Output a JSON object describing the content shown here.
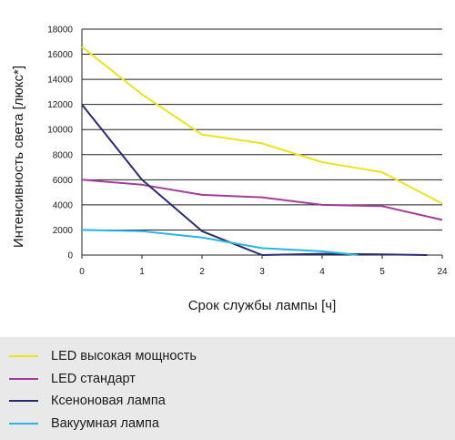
{
  "chart_data": {
    "type": "line",
    "xlabel": "Срок службы лампы [ч]",
    "ylabel": "Интенсивность света [люкс*]",
    "categories": [
      "0",
      "1",
      "2",
      "3",
      "4",
      "5",
      "24"
    ],
    "ylim": [
      0,
      18000
    ],
    "yticks": [
      0,
      2000,
      4000,
      6000,
      8000,
      10000,
      12000,
      14000,
      16000,
      18000
    ],
    "grid": "horizontal",
    "legend_position": "bottom",
    "series": [
      {
        "name": "LED высокая мощность",
        "color": "#ece31b",
        "points": [
          [
            0,
            16600
          ],
          [
            1,
            12800
          ],
          [
            2,
            9600
          ],
          [
            3,
            8900
          ],
          [
            4,
            7400
          ],
          [
            5,
            6600
          ],
          [
            6,
            4100
          ]
        ]
      },
      {
        "name": "LED стандарт",
        "color": "#a43c9c",
        "points": [
          [
            0,
            6000
          ],
          [
            1,
            5600
          ],
          [
            2,
            4800
          ],
          [
            3,
            4600
          ],
          [
            4,
            4000
          ],
          [
            5,
            3900
          ],
          [
            6,
            2800
          ]
        ]
      },
      {
        "name": "Ксеноновая лампа",
        "color": "#272c73",
        "points": [
          [
            0,
            12000
          ],
          [
            1,
            6000
          ],
          [
            2,
            1900
          ],
          [
            3,
            0
          ],
          [
            4,
            100
          ],
          [
            5,
            50
          ],
          [
            5.75,
            0
          ]
        ]
      },
      {
        "name": "Вакуумная лампа",
        "color": "#27b5e6",
        "points": [
          [
            0,
            2000
          ],
          [
            1,
            1900
          ],
          [
            2,
            1400
          ],
          [
            3,
            550
          ],
          [
            4,
            300
          ],
          [
            4.6,
            0
          ]
        ]
      }
    ]
  }
}
